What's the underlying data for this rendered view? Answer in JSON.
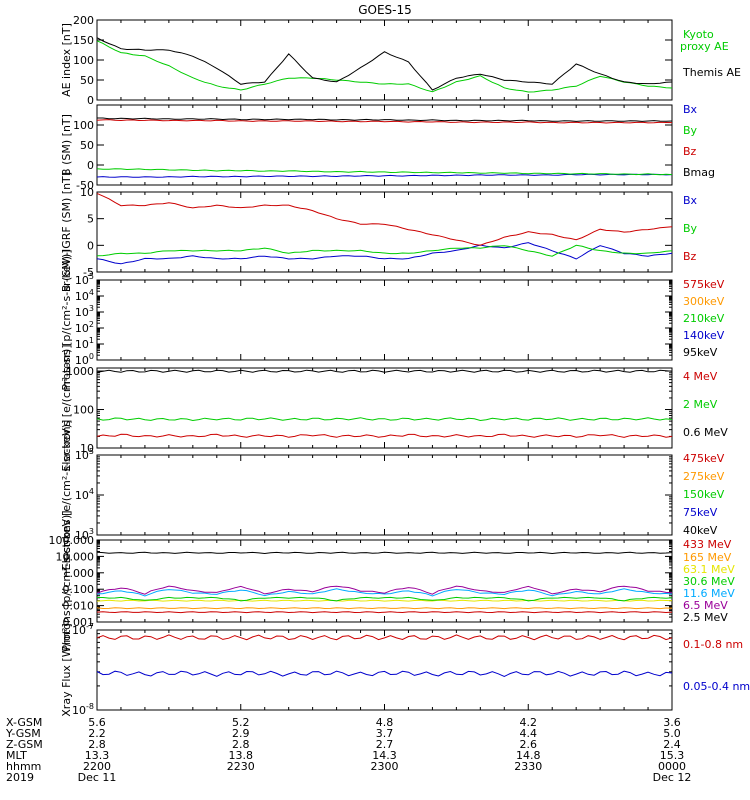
{
  "title": "GOES-15",
  "colors": {
    "black": "#000000",
    "red": "#cc0000",
    "green": "#00cc00",
    "blue": "#0000cc",
    "orange": "#ff9900",
    "yellow": "#e6e600",
    "cyan": "#00aaff",
    "purple": "#990099"
  },
  "footer": {
    "row_labels": [
      "X-GSM",
      "Y-GSM",
      "Z-GSM",
      "MLT",
      "hhmm",
      "2019"
    ],
    "columns": [
      {
        "values": [
          "5.6",
          "2.2",
          "2.8",
          "13.3",
          "2200",
          "Dec 11"
        ]
      },
      {
        "values": [
          "5.2",
          "2.9",
          "2.8",
          "13.8",
          "2230",
          ""
        ]
      },
      {
        "values": [
          "4.8",
          "3.7",
          "2.7",
          "14.3",
          "2300",
          ""
        ]
      },
      {
        "values": [
          "4.2",
          "4.4",
          "2.6",
          "14.8",
          "2330",
          ""
        ]
      },
      {
        "values": [
          "3.6",
          "5.0",
          "2.4",
          "15.3",
          "0000",
          "Dec 12"
        ]
      }
    ]
  },
  "chart_data": [
    {
      "type": "line",
      "ylabel": "AE index [nT]",
      "ylim": [
        0,
        200
      ],
      "scale": "linear",
      "ticks": [
        0,
        50,
        100,
        150,
        200
      ],
      "tick_labels": [
        "0",
        "50",
        "100",
        "150",
        "200"
      ],
      "x": [
        "2200",
        "2205",
        "2210",
        "2215",
        "2220",
        "2225",
        "2230",
        "2235",
        "2240",
        "2245",
        "2250",
        "2255",
        "2300",
        "2305",
        "2310",
        "2315",
        "2320",
        "2325",
        "2330",
        "2335",
        "2340",
        "2345",
        "2350",
        "2355",
        "0000"
      ],
      "series": [
        {
          "name": "Kyoto proxy AE",
          "color": "green",
          "values": [
            148,
            118,
            110,
            85,
            55,
            35,
            25,
            40,
            55,
            55,
            50,
            45,
            40,
            40,
            20,
            45,
            60,
            30,
            20,
            25,
            35,
            60,
            45,
            35,
            30
          ]
        },
        {
          "name": "Themis AE",
          "color": "black",
          "values": [
            155,
            128,
            125,
            125,
            110,
            80,
            40,
            45,
            115,
            55,
            45,
            80,
            120,
            95,
            25,
            55,
            65,
            50,
            45,
            40,
            90,
            65,
            45,
            40,
            45
          ]
        }
      ]
    },
    {
      "type": "line",
      "ylabel": "B (SM) [nT]",
      "ylim": [
        -50,
        150
      ],
      "scale": "linear",
      "ticks": [
        -50,
        0,
        50,
        100
      ],
      "tick_labels": [
        "-50",
        "0",
        "50",
        "100"
      ],
      "x": [
        "2200",
        "2205",
        "2210",
        "2215",
        "2220",
        "2225",
        "2230",
        "2235",
        "2240",
        "2245",
        "2250",
        "2255",
        "2300",
        "2305",
        "2310",
        "2315",
        "2320",
        "2325",
        "2330",
        "2335",
        "2340",
        "2345",
        "2350",
        "2355",
        "0000"
      ],
      "series": [
        {
          "name": "Bx",
          "color": "blue",
          "values": [
            -30,
            -30,
            -30,
            -30,
            -29,
            -29,
            -29,
            -28,
            -28,
            -28,
            -28,
            -27,
            -27,
            -27,
            -26,
            -26,
            -25,
            -25,
            -25,
            -25,
            -24,
            -24,
            -24,
            -24,
            -24
          ]
        },
        {
          "name": "By",
          "color": "green",
          "values": [
            -10,
            -10,
            -11,
            -12,
            -13,
            -14,
            -14,
            -15,
            -15,
            -16,
            -17,
            -17,
            -18,
            -18,
            -19,
            -19,
            -20,
            -20,
            -21,
            -21,
            -22,
            -22,
            -23,
            -23,
            -24
          ]
        },
        {
          "name": "Bz",
          "color": "red",
          "values": [
            113,
            112,
            112,
            111,
            111,
            111,
            110,
            110,
            110,
            110,
            109,
            109,
            109,
            108,
            108,
            107,
            107,
            107,
            107,
            106,
            106,
            106,
            106,
            106,
            106
          ]
        },
        {
          "name": "Bmag",
          "color": "black",
          "values": [
            117,
            116,
            116,
            115,
            115,
            115,
            114,
            114,
            114,
            114,
            113,
            113,
            113,
            112,
            112,
            111,
            111,
            111,
            111,
            110,
            110,
            110,
            110,
            110,
            110
          ]
        }
      ]
    },
    {
      "type": "line",
      "ylabel": "B (SM)-IGRF (SM) [nT]",
      "ylim": [
        -5,
        10
      ],
      "scale": "linear",
      "ticks": [
        -5,
        0,
        5,
        10
      ],
      "tick_labels": [
        "-5",
        "0",
        "5",
        "10"
      ],
      "x": [
        "2200",
        "2205",
        "2210",
        "2215",
        "2220",
        "2225",
        "2230",
        "2235",
        "2240",
        "2245",
        "2250",
        "2255",
        "2300",
        "2305",
        "2310",
        "2315",
        "2320",
        "2325",
        "2330",
        "2335",
        "2340",
        "2345",
        "2350",
        "2355",
        "0000"
      ],
      "series": [
        {
          "name": "Bx",
          "color": "blue",
          "values": [
            -2.5,
            -3.5,
            -2.5,
            -2.5,
            -2.0,
            -2.5,
            -2.5,
            -2.0,
            -2.5,
            -2.5,
            -2.0,
            -2.0,
            -2.5,
            -2.5,
            -1.5,
            -1.0,
            0.0,
            -0.5,
            0.5,
            -1.0,
            -2.5,
            0.0,
            -1.5,
            -2.0,
            -1.5
          ]
        },
        {
          "name": "By",
          "color": "green",
          "values": [
            -2.0,
            -1.5,
            -1.5,
            -1.0,
            -1.0,
            -1.0,
            -1.0,
            -0.5,
            -1.5,
            -1.0,
            -1.0,
            -1.0,
            -1.5,
            -1.5,
            -1.0,
            -0.5,
            -0.5,
            0.0,
            -1.0,
            -2.0,
            0.0,
            -1.0,
            -1.5,
            -1.5,
            -1.0
          ]
        },
        {
          "name": "Bz",
          "color": "red",
          "values": [
            9.8,
            7.5,
            7.5,
            8.0,
            7.0,
            7.5,
            7.0,
            7.5,
            7.5,
            6.5,
            5.0,
            4.0,
            4.0,
            3.0,
            2.0,
            1.0,
            0.0,
            1.5,
            2.5,
            2.0,
            1.0,
            3.0,
            2.5,
            3.0,
            3.5
          ]
        }
      ]
    },
    {
      "type": "line",
      "ylabel": "Protons [p/(cm²-s-sr-keV)]",
      "ylim": [
        1,
        100000
      ],
      "scale": "log",
      "ticks": [
        1,
        10,
        100,
        1000,
        10000,
        100000
      ],
      "tick_labels": [
        "10^0",
        "10^1",
        "10^2",
        "10^3",
        "10^4",
        "10^5"
      ],
      "series": [
        {
          "name": "575keV",
          "color": "red"
        },
        {
          "name": "300keV",
          "color": "orange"
        },
        {
          "name": "210keV",
          "color": "green"
        },
        {
          "name": "140keV",
          "color": "blue"
        },
        {
          "name": "95keV",
          "color": "black"
        }
      ]
    },
    {
      "type": "line",
      "ylabel": "Electrons [e/(cm²-s-sr)]",
      "ylim": [
        10,
        1200
      ],
      "scale": "log",
      "ticks": [
        10,
        100,
        1000
      ],
      "tick_labels": [
        "10",
        "100",
        "1000"
      ],
      "x": [
        "2200",
        "2205",
        "2210",
        "2215",
        "2220",
        "2225",
        "2230",
        "2235",
        "2240",
        "2245",
        "2250",
        "2255",
        "2300",
        "2305",
        "2310",
        "2315",
        "2320",
        "2325",
        "2330",
        "2335",
        "2340",
        "2345",
        "2350",
        "2355",
        "0000"
      ],
      "series": [
        {
          "name": "4 MeV",
          "color": "red",
          "values": [
            20,
            22,
            20,
            21,
            20,
            22,
            20,
            21,
            20,
            22,
            20,
            21,
            20,
            22,
            20,
            21,
            20,
            22,
            20,
            21,
            20,
            22,
            20,
            21,
            20
          ]
        },
        {
          "name": "2 MeV",
          "color": "green",
          "values": [
            55,
            58,
            55,
            56,
            55,
            57,
            56,
            58,
            55,
            57,
            56,
            58,
            55,
            57,
            56,
            58,
            55,
            57,
            56,
            58,
            55,
            57,
            56,
            58,
            55
          ]
        },
        {
          "name": "0.6 MeV",
          "color": "black",
          "values": [
            980,
            990,
            985,
            995,
            990,
            1000,
            985,
            995,
            990,
            1000,
            985,
            995,
            990,
            1000,
            985,
            995,
            990,
            1000,
            985,
            995,
            990,
            1000,
            985,
            995,
            990
          ]
        }
      ]
    },
    {
      "type": "line",
      "ylabel": "Electrons [e/(cm²-s-sr-keV)]",
      "ylim": [
        1000,
        100000
      ],
      "scale": "log",
      "ticks": [
        1000,
        10000,
        100000
      ],
      "tick_labels": [
        "10^3",
        "10^4",
        "10^5"
      ],
      "series": [
        {
          "name": "475keV",
          "color": "red"
        },
        {
          "name": "275keV",
          "color": "orange"
        },
        {
          "name": "150keV",
          "color": "green"
        },
        {
          "name": "75keV",
          "color": "blue"
        },
        {
          "name": "40keV",
          "color": "black"
        }
      ]
    },
    {
      "type": "line",
      "ylabel": "Protons [p/(cm²-s-sr-keV)]",
      "ylim": [
        0.001,
        100
      ],
      "scale": "log",
      "ticks": [
        0.001,
        0.01,
        0.1,
        1,
        10,
        100
      ],
      "tick_labels": [
        "0.001",
        "0.010",
        "0.100",
        "1.000",
        "10.000",
        "100.000"
      ],
      "x": [
        "2200",
        "2205",
        "2210",
        "2215",
        "2220",
        "2225",
        "2230",
        "2235",
        "2240",
        "2245",
        "2250",
        "2255",
        "2300",
        "2305",
        "2310",
        "2315",
        "2320",
        "2325",
        "2330",
        "2335",
        "2340",
        "2345",
        "2350",
        "2355",
        "0000"
      ],
      "series": [
        {
          "name": "433 MeV",
          "color": "red",
          "values": [
            0.004,
            0.004,
            0.004,
            0.004,
            0.004,
            0.004,
            0.004,
            0.004,
            0.004,
            0.004,
            0.004,
            0.004,
            0.004,
            0.004,
            0.004,
            0.004,
            0.004,
            0.004,
            0.004,
            0.004,
            0.004,
            0.004,
            0.004,
            0.004,
            0.004
          ]
        },
        {
          "name": "165 MeV",
          "color": "orange",
          "values": [
            0.007,
            0.007,
            0.007,
            0.007,
            0.007,
            0.007,
            0.007,
            0.007,
            0.007,
            0.007,
            0.007,
            0.007,
            0.007,
            0.007,
            0.007,
            0.007,
            0.007,
            0.007,
            0.007,
            0.007,
            0.007,
            0.007,
            0.007,
            0.007,
            0.007
          ]
        },
        {
          "name": "63.1 MeV",
          "color": "yellow",
          "values": [
            0.02,
            0.02,
            0.02,
            0.02,
            0.02,
            0.02,
            0.02,
            0.02,
            0.02,
            0.02,
            0.02,
            0.02,
            0.02,
            0.02,
            0.02,
            0.02,
            0.02,
            0.02,
            0.02,
            0.02,
            0.02,
            0.02,
            0.02,
            0.02,
            0.02
          ]
        },
        {
          "name": "30.6 MeV",
          "color": "green",
          "values": [
            0.03,
            0.03,
            0.02,
            0.03,
            0.03,
            0.03,
            0.02,
            0.03,
            0.03,
            0.03,
            0.02,
            0.03,
            0.03,
            0.03,
            0.02,
            0.03,
            0.03,
            0.03,
            0.02,
            0.03,
            0.03,
            0.03,
            0.02,
            0.03,
            0.03
          ]
        },
        {
          "name": "11.6 MeV",
          "color": "cyan",
          "values": [
            0.05,
            0.08,
            0.04,
            0.1,
            0.06,
            0.05,
            0.09,
            0.04,
            0.07,
            0.05,
            0.1,
            0.06,
            0.05,
            0.08,
            0.04,
            0.1,
            0.06,
            0.05,
            0.09,
            0.04,
            0.07,
            0.05,
            0.1,
            0.06,
            0.05
          ]
        },
        {
          "name": "6.5 MeV",
          "color": "purple",
          "values": [
            0.06,
            0.12,
            0.05,
            0.15,
            0.08,
            0.06,
            0.14,
            0.05,
            0.1,
            0.07,
            0.16,
            0.08,
            0.06,
            0.13,
            0.05,
            0.15,
            0.08,
            0.06,
            0.14,
            0.05,
            0.1,
            0.07,
            0.16,
            0.08,
            0.06
          ]
        },
        {
          "name": "2.5 MeV",
          "color": "black",
          "values": [
            17,
            16,
            17,
            16,
            17,
            16,
            17,
            16,
            17,
            16,
            17,
            16,
            17,
            16,
            17,
            16,
            17,
            16,
            17,
            16,
            17,
            16,
            17,
            16,
            17
          ]
        }
      ]
    },
    {
      "type": "line",
      "ylabel": "Xray Flux [W/m²]",
      "ylim": [
        1e-08,
        1e-07
      ],
      "scale": "log",
      "ticks": [
        1e-08,
        1e-07
      ],
      "tick_labels": [
        "10^-8",
        "10^-7"
      ],
      "x": [
        "2200",
        "2205",
        "2210",
        "2215",
        "2220",
        "2225",
        "2230",
        "2235",
        "2240",
        "2245",
        "2250",
        "2255",
        "2300",
        "2305",
        "2310",
        "2315",
        "2320",
        "2325",
        "2330",
        "2335",
        "2340",
        "2345",
        "2350",
        "2355",
        "0000"
      ],
      "series": [
        {
          "name": "0.1-0.8 nm",
          "color": "red",
          "values": [
            8e-08,
            8.1e-08,
            8e-08,
            8.2e-08,
            8e-08,
            8.1e-08,
            8e-08,
            8.2e-08,
            8e-08,
            8.1e-08,
            8e-08,
            8.2e-08,
            8e-08,
            8.1e-08,
            8e-08,
            8.2e-08,
            8e-08,
            8.1e-08,
            8e-08,
            8.2e-08,
            8e-08,
            8.1e-08,
            8e-08,
            8.2e-08,
            8e-08
          ]
        },
        {
          "name": "0.05-0.4 nm",
          "color": "blue",
          "values": [
            2.9e-08,
            2.9e-08,
            2.8e-08,
            2.9e-08,
            2.9e-08,
            2.8e-08,
            2.9e-08,
            2.9e-08,
            2.8e-08,
            2.9e-08,
            2.9e-08,
            2.8e-08,
            2.9e-08,
            2.9e-08,
            2.8e-08,
            2.9e-08,
            2.9e-08,
            2.8e-08,
            2.9e-08,
            2.9e-08,
            2.8e-08,
            2.9e-08,
            2.9e-08,
            2.8e-08,
            2.9e-08
          ]
        }
      ]
    }
  ]
}
